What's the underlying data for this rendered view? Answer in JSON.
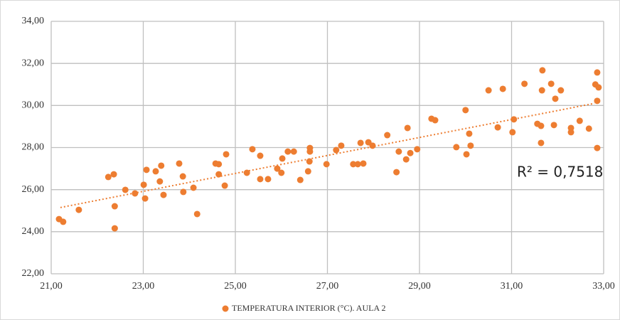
{
  "chart_data": {
    "type": "scatter",
    "series": [
      {
        "name": "TEMPERATURA INTERIOR (°C). AULA 2",
        "color": "#ed7d31",
        "x": [
          21.17,
          21.26,
          21.6,
          22.24,
          22.36,
          22.38,
          22.38,
          22.61,
          22.82,
          23.01,
          23.04,
          23.07,
          23.27,
          23.36,
          23.39,
          23.44,
          23.78,
          23.86,
          23.87,
          24.09,
          24.17,
          24.57,
          24.64,
          24.64,
          24.77,
          24.8,
          25.25,
          25.37,
          25.54,
          25.54,
          25.71,
          25.91,
          26.0,
          26.02,
          26.14,
          26.27,
          26.41,
          26.58,
          26.61,
          26.62,
          26.62,
          26.98,
          27.19,
          27.3,
          27.56,
          27.66,
          27.72,
          27.78,
          27.89,
          27.98,
          28.3,
          28.5,
          28.55,
          28.71,
          28.74,
          28.8,
          28.95,
          29.26,
          29.34,
          29.8,
          30.0,
          30.02,
          30.08,
          30.11,
          30.5,
          30.7,
          30.81,
          31.02,
          31.05,
          31.28,
          31.56,
          31.64,
          31.64,
          31.66,
          31.67,
          31.86,
          31.92,
          31.95,
          32.07,
          32.29,
          32.29,
          32.48,
          32.68,
          32.82,
          32.86,
          32.86,
          32.86,
          32.89
        ],
        "values": [
          24.6,
          24.47,
          25.04,
          26.6,
          26.73,
          25.21,
          24.16,
          25.99,
          25.82,
          26.23,
          25.58,
          26.94,
          26.87,
          26.39,
          27.14,
          25.75,
          27.24,
          26.63,
          25.89,
          26.09,
          24.84,
          27.24,
          27.21,
          26.73,
          26.19,
          27.68,
          26.8,
          27.92,
          27.61,
          26.5,
          26.5,
          27.0,
          26.8,
          27.48,
          27.81,
          27.81,
          26.46,
          26.87,
          27.34,
          27.81,
          27.98,
          27.21,
          27.88,
          28.09,
          27.21,
          27.21,
          28.22,
          27.24,
          28.25,
          28.09,
          28.59,
          26.83,
          27.81,
          27.44,
          28.93,
          27.74,
          27.92,
          29.37,
          29.3,
          28.02,
          29.78,
          27.68,
          28.66,
          28.09,
          30.72,
          28.96,
          30.79,
          28.73,
          29.34,
          31.03,
          29.13,
          28.22,
          29.03,
          30.72,
          31.67,
          31.03,
          29.07,
          30.32,
          30.72,
          28.93,
          28.73,
          29.27,
          28.9,
          31.0,
          31.57,
          30.22,
          27.98,
          30.86
        ]
      }
    ],
    "trendline": {
      "x": [
        21.2,
        32.8
      ],
      "values": [
        25.15,
        30.1
      ],
      "color": "#ed7d31"
    },
    "annotation": "R² = 0,7518",
    "xlim": [
      21,
      33
    ],
    "xticks": [
      {
        "value": 21,
        "label": "21,00"
      },
      {
        "value": 23,
        "label": "23,00"
      },
      {
        "value": 25,
        "label": "25,00"
      },
      {
        "value": 27,
        "label": "27,00"
      },
      {
        "value": 29,
        "label": "29,00"
      },
      {
        "value": 31,
        "label": "31,00"
      },
      {
        "value": 33,
        "label": "33,00"
      }
    ],
    "ylim": [
      22,
      34
    ],
    "yticks": [
      {
        "value": 22,
        "label": "22,00"
      },
      {
        "value": 24,
        "label": "24,00"
      },
      {
        "value": 26,
        "label": "26,00"
      },
      {
        "value": 28,
        "label": "28,00"
      },
      {
        "value": 30,
        "label": "30,00"
      },
      {
        "value": 32,
        "label": "32,00"
      },
      {
        "value": 34,
        "label": "34,00"
      }
    ],
    "grid": true
  }
}
